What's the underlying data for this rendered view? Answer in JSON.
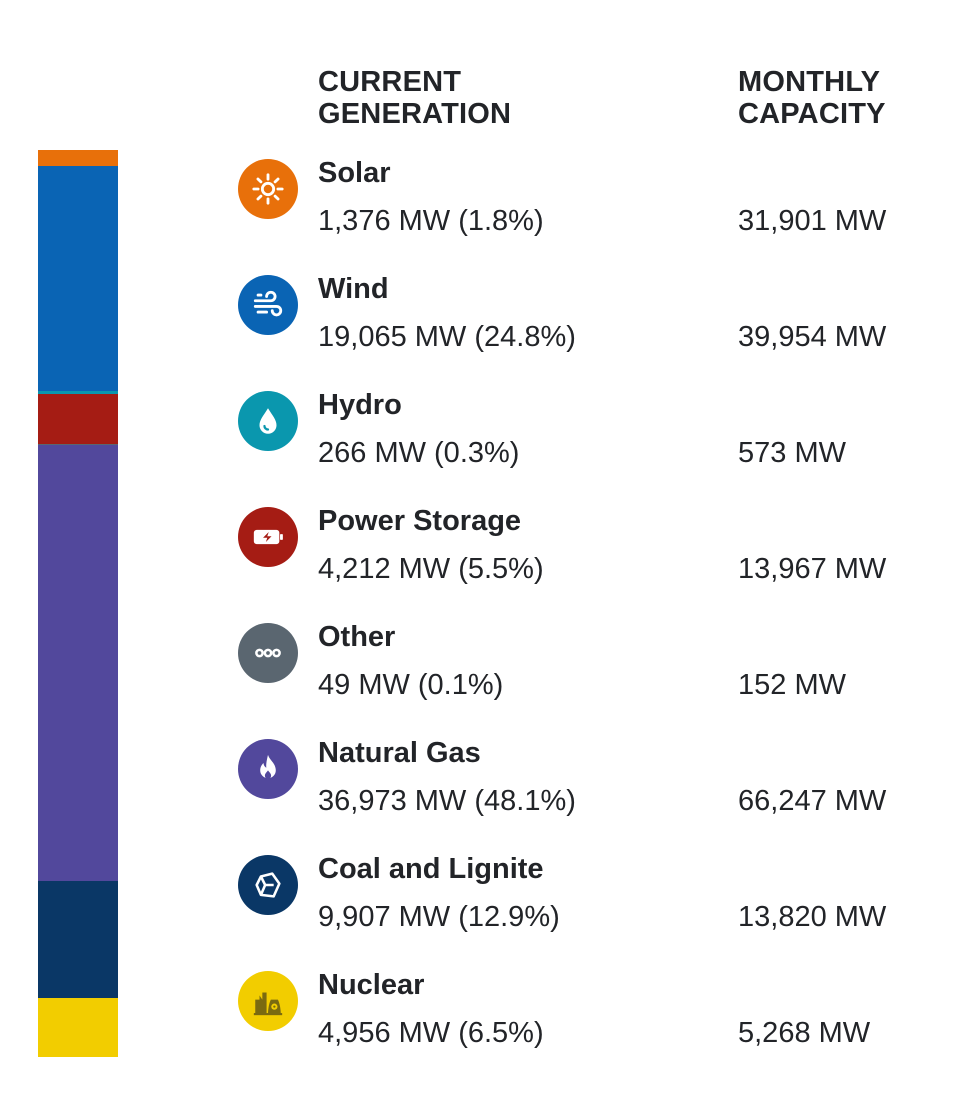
{
  "headers": {
    "generation": "CURRENT\nGENERATION",
    "capacity": "MONTHLY\nCAPACITY"
  },
  "chart_data": {
    "type": "bar",
    "stacked": true,
    "orientation": "vertical",
    "categories": [
      "Solar",
      "Wind",
      "Hydro",
      "Power Storage",
      "Other",
      "Natural Gas",
      "Coal and Lignite",
      "Nuclear"
    ],
    "series": [
      {
        "name": "",
        "values": [
          1376,
          19065,
          266,
          4212,
          49,
          36973,
          9907,
          4956
        ]
      }
    ],
    "percentages": [
      1.8,
      24.8,
      0.3,
      5.5,
      0.1,
      48.1,
      12.9,
      6.5
    ],
    "unit": "MW"
  },
  "sources": [
    {
      "name": "Solar",
      "generation": "1,376 MW (1.8%)",
      "capacity": "31,901 MW",
      "color": "#e8700a",
      "icon": "sun-icon"
    },
    {
      "name": "Wind",
      "generation": "19,065 MW (24.8%)",
      "capacity": "39,954 MW",
      "color": "#0a64b4",
      "icon": "wind-icon"
    },
    {
      "name": "Hydro",
      "generation": "266 MW (0.3%)",
      "capacity": "573 MW",
      "color": "#0a97ae",
      "icon": "water-drop-icon"
    },
    {
      "name": "Power Storage",
      "generation": "4,212 MW (5.5%)",
      "capacity": "13,967 MW",
      "color": "#a51c14",
      "icon": "battery-icon"
    },
    {
      "name": "Other",
      "generation": "49 MW (0.1%)",
      "capacity": "152 MW",
      "color": "#5a6670",
      "icon": "more-dots-icon"
    },
    {
      "name": "Natural Gas",
      "generation": "36,973 MW (48.1%)",
      "capacity": "66,247 MW",
      "color": "#52489c",
      "icon": "flame-icon"
    },
    {
      "name": "Coal and Lignite",
      "generation": "9,907 MW (12.9%)",
      "capacity": "13,820 MW",
      "color": "#0a3766",
      "icon": "coal-icon"
    },
    {
      "name": "Nuclear",
      "generation": "4,956 MW (6.5%)",
      "capacity": "5,268 MW",
      "color": "#f2cd00",
      "icon": "nuclear-plant-icon"
    }
  ]
}
